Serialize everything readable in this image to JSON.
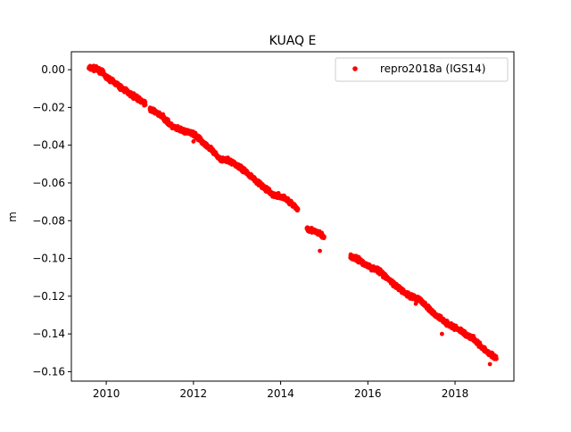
{
  "chart_data": {
    "type": "scatter",
    "title": "KUAQ E",
    "xlabel": "",
    "ylabel": "m",
    "xlim": [
      2009.2,
      2019.35
    ],
    "ylim": [
      -0.165,
      0.0095
    ],
    "xticks": [
      2010,
      2012,
      2014,
      2016,
      2018
    ],
    "yticks": [
      0.0,
      -0.02,
      -0.04,
      -0.06,
      -0.08,
      -0.1,
      -0.12,
      -0.14,
      -0.16
    ],
    "ytick_labels": [
      "0.00",
      "−0.02",
      "−0.04",
      "−0.06",
      "−0.08",
      "−0.10",
      "−0.12",
      "−0.14",
      "−0.16"
    ],
    "grid": false,
    "legend_position": "top-right",
    "series": [
      {
        "name": "repro2018a (IGS14)",
        "color": "#ff0000",
        "marker": "circle",
        "segments": [
          {
            "x": [
              2009.6,
              2009.75,
              2009.9,
              2010.0,
              2010.15,
              2010.3,
              2010.5,
              2010.7,
              2010.9
            ],
            "y": [
              0.001,
              0.0005,
              -0.001,
              -0.004,
              -0.006,
              -0.009,
              -0.012,
              -0.015,
              -0.018
            ]
          },
          {
            "x": [
              2011.0,
              2011.1,
              2011.3,
              2011.5,
              2011.7,
              2012.0,
              2012.3,
              2012.6,
              2012.9,
              2013.2,
              2013.5,
              2013.8,
              2014.1,
              2014.4
            ],
            "y": [
              -0.021,
              -0.022,
              -0.025,
              -0.03,
              -0.032,
              -0.034,
              -0.04,
              -0.047,
              -0.049,
              -0.054,
              -0.06,
              -0.066,
              -0.068,
              -0.074
            ]
          },
          {
            "x": [
              2014.6,
              2014.7,
              2014.8,
              2014.9,
              2015.0
            ],
            "y": [
              -0.084,
              -0.085,
              -0.086,
              -0.087,
              -0.089
            ]
          },
          {
            "x": [
              2015.6,
              2015.8,
              2016.0,
              2016.3,
              2016.6,
              2016.9,
              2017.2,
              2017.5,
              2017.8,
              2018.1,
              2018.4,
              2018.7,
              2018.95
            ],
            "y": [
              -0.099,
              -0.101,
              -0.104,
              -0.107,
              -0.114,
              -0.119,
              -0.122,
              -0.129,
              -0.134,
              -0.138,
              -0.142,
              -0.149,
              -0.153
            ]
          }
        ],
        "outliers": {
          "x": [
            2012.0,
            2014.9,
            2016.35,
            2017.1,
            2017.7,
            2018.4,
            2018.8
          ],
          "y": [
            -0.038,
            -0.096,
            -0.11,
            -0.124,
            -0.14,
            -0.143,
            -0.156
          ]
        }
      }
    ]
  }
}
